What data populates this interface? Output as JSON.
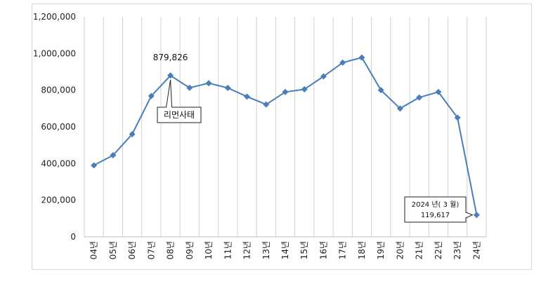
{
  "chart_data": {
    "type": "line",
    "categories": [
      "04년",
      "05년",
      "06년",
      "07년",
      "08년",
      "09년",
      "10년",
      "11년",
      "12년",
      "13년",
      "14년",
      "15년",
      "16년",
      "17년",
      "18년",
      "19년",
      "20년",
      "21년",
      "22년",
      "23년",
      "24년"
    ],
    "series": [
      {
        "values": [
          390000,
          445000,
          560000,
          768000,
          879826,
          813000,
          838000,
          812000,
          765000,
          722000,
          790000,
          805000,
          875000,
          950000,
          978000,
          800000,
          700000,
          760000,
          790000,
          650000,
          119617
        ]
      }
    ],
    "ylim": [
      0,
      1200000
    ],
    "yticks": [
      "0",
      "200,000",
      "400,000",
      "600,000",
      "800,000",
      "1,000,000",
      "1,200,000"
    ],
    "grid": "vertical",
    "legend": "none",
    "color": "#4a7ebb",
    "annotations": {
      "peak_label": "879,826",
      "event_label": "리먼사태",
      "last_line1": "2024 년( 3 월)",
      "last_line2": "119,617"
    }
  }
}
